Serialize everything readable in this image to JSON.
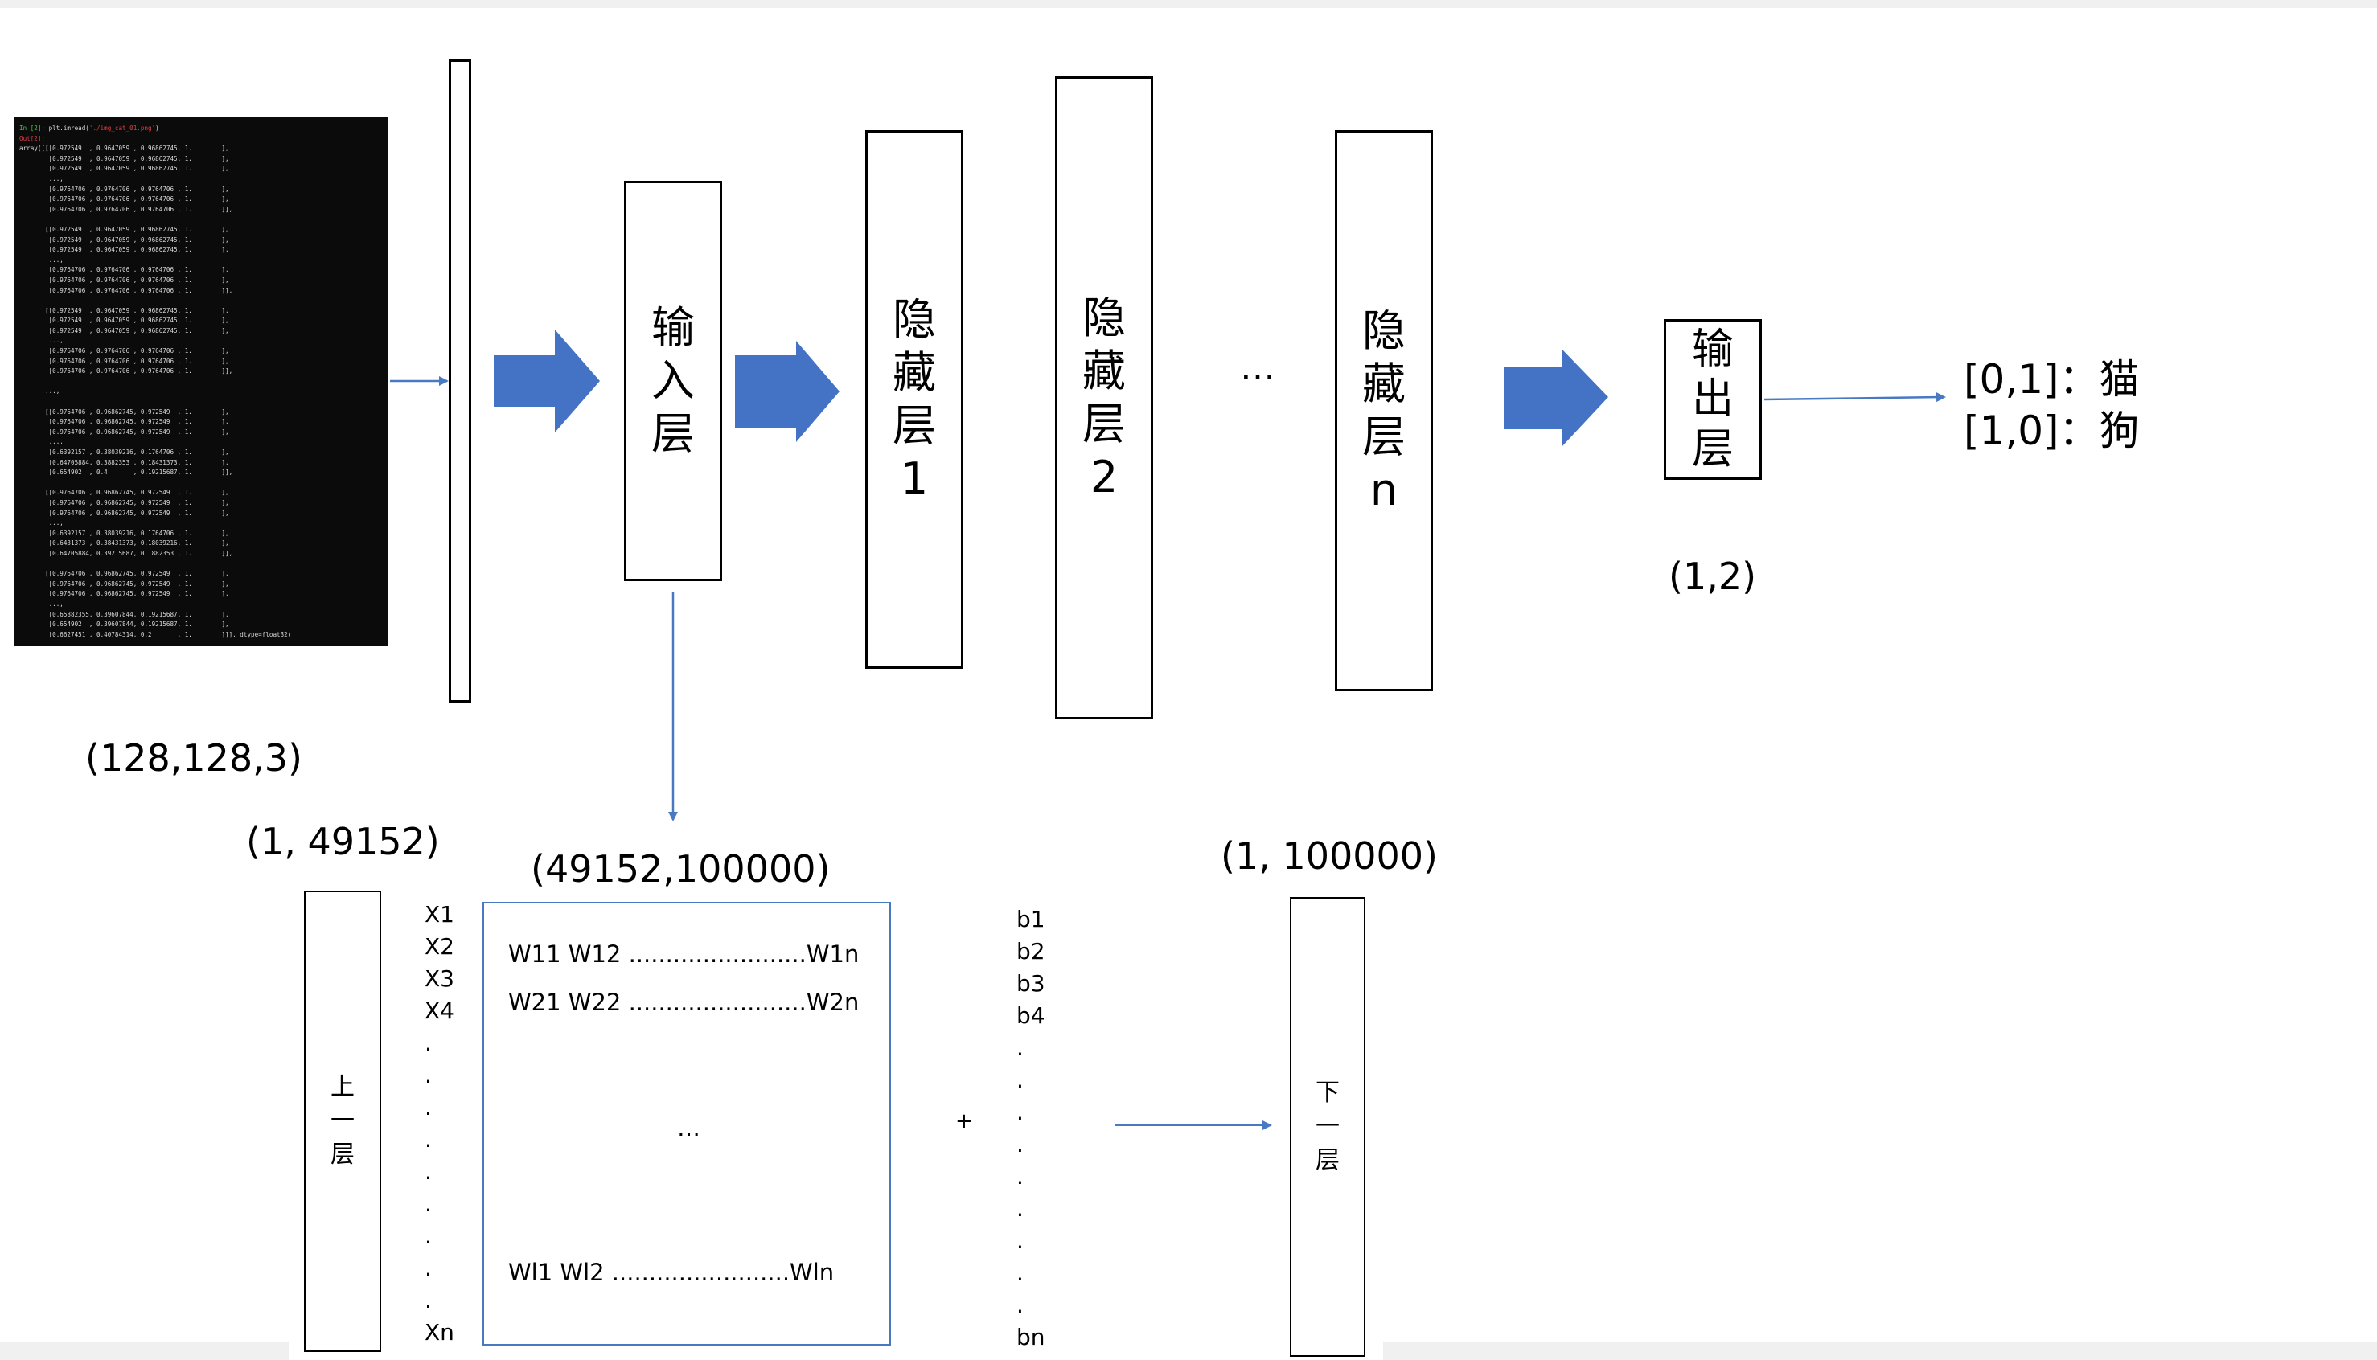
{
  "code_lines": [
    {
      "prompt": "In [2]: ",
      "code": "plt.imread(",
      "string": "'./img_cat_01.png'",
      "end": ")"
    },
    {
      "out": "Out[2]:"
    },
    {
      "text": "array([[[0.972549  , 0.9647059 , 0.96862745, 1.        ],"
    },
    {
      "text": "        [0.972549  , 0.9647059 , 0.96862745, 1.        ],"
    },
    {
      "text": "        [0.972549  , 0.9647059 , 0.96862745, 1.        ],"
    },
    {
      "text": "        ...,"
    },
    {
      "text": "        [0.9764706 , 0.9764706 , 0.9764706 , 1.        ],"
    },
    {
      "text": "        [0.9764706 , 0.9764706 , 0.9764706 , 1.        ],"
    },
    {
      "text": "        [0.9764706 , 0.9764706 , 0.9764706 , 1.        ]],"
    },
    {
      "text": ""
    },
    {
      "text": "       [[0.972549  , 0.9647059 , 0.96862745, 1.        ],"
    },
    {
      "text": "        [0.972549  , 0.9647059 , 0.96862745, 1.        ],"
    },
    {
      "text": "        [0.972549  , 0.9647059 , 0.96862745, 1.        ],"
    },
    {
      "text": "        ...,"
    },
    {
      "text": "        [0.9764706 , 0.9764706 , 0.9764706 , 1.        ],"
    },
    {
      "text": "        [0.9764706 , 0.9764706 , 0.9764706 , 1.        ],"
    },
    {
      "text": "        [0.9764706 , 0.9764706 , 0.9764706 , 1.        ]],"
    },
    {
      "text": ""
    },
    {
      "text": "       [[0.972549  , 0.9647059 , 0.96862745, 1.        ],"
    },
    {
      "text": "        [0.972549  , 0.9647059 , 0.96862745, 1.        ],"
    },
    {
      "text": "        [0.972549  , 0.9647059 , 0.96862745, 1.        ],"
    },
    {
      "text": "        ...,"
    },
    {
      "text": "        [0.9764706 , 0.9764706 , 0.9764706 , 1.        ],"
    },
    {
      "text": "        [0.9764706 , 0.9764706 , 0.9764706 , 1.        ],"
    },
    {
      "text": "        [0.9764706 , 0.9764706 , 0.9764706 , 1.        ]],"
    },
    {
      "text": ""
    },
    {
      "text": "       ...,"
    },
    {
      "text": ""
    },
    {
      "text": "       [[0.9764706 , 0.96862745, 0.972549  , 1.        ],"
    },
    {
      "text": "        [0.9764706 , 0.96862745, 0.972549  , 1.        ],"
    },
    {
      "text": "        [0.9764706 , 0.96862745, 0.972549  , 1.        ],"
    },
    {
      "text": "        ...,"
    },
    {
      "text": "        [0.6392157 , 0.38039216, 0.1764706 , 1.        ],"
    },
    {
      "text": "        [0.64705884, 0.3882353 , 0.18431373, 1.        ],"
    },
    {
      "text": "        [0.654902  , 0.4       , 0.19215687, 1.        ]],"
    },
    {
      "text": ""
    },
    {
      "text": "       [[0.9764706 , 0.96862745, 0.972549  , 1.        ],"
    },
    {
      "text": "        [0.9764706 , 0.96862745, 0.972549  , 1.        ],"
    },
    {
      "text": "        [0.9764706 , 0.96862745, 0.972549  , 1.        ],"
    },
    {
      "text": "        ...,"
    },
    {
      "text": "        [0.6392157 , 0.38039216, 0.1764706 , 1.        ],"
    },
    {
      "text": "        [0.6431373 , 0.38431373, 0.18039216, 1.        ],"
    },
    {
      "text": "        [0.64705884, 0.39215687, 0.1882353 , 1.        ]],"
    },
    {
      "text": ""
    },
    {
      "text": "       [[0.9764706 , 0.96862745, 0.972549  , 1.        ],"
    },
    {
      "text": "        [0.9764706 , 0.96862745, 0.972549  , 1.        ],"
    },
    {
      "text": "        [0.9764706 , 0.96862745, 0.972549  , 1.        ],"
    },
    {
      "text": "        ...,"
    },
    {
      "text": "        [0.65882355, 0.39607844, 0.19215687, 1.        ],"
    },
    {
      "text": "        [0.654902  , 0.39607844, 0.19215687, 1.        ],"
    },
    {
      "text": "        [0.6627451 , 0.40784314, 0.2       , 1.        ]]], dtype=float32)"
    }
  ],
  "shape_image": "(128,128,3)",
  "input_layer": [
    "输",
    "入",
    "层"
  ],
  "hidden_1": [
    "隐",
    "藏",
    "层",
    "1"
  ],
  "hidden_2": [
    "隐",
    "藏",
    "层",
    "2"
  ],
  "ellipsis_top": "…",
  "hidden_n": [
    "隐",
    "藏",
    "层",
    "n"
  ],
  "output_layer": [
    "输",
    "出",
    "层"
  ],
  "shape_output": "(1,2)",
  "class_map": [
    "[0,1]：猫",
    "[1,0]：狗"
  ],
  "shape_prev": "(1, 49152)",
  "shape_weights": "(49152,100000)",
  "shape_bias": "(1, 100000)",
  "prev_layer": [
    "上",
    "一",
    "层"
  ],
  "next_layer": [
    "下",
    "一",
    "层"
  ],
  "x_labels": [
    "X1",
    "X2",
    "X3",
    "X4",
    ".",
    ".",
    ".",
    ".",
    ".",
    ".",
    ".",
    ".",
    ".",
    "Xn"
  ],
  "weight_rows": [
    "W11 W12 ........................W1n",
    "W21 W22 ........................W2n",
    "…",
    "Wl1 Wl2 ........................Wln"
  ],
  "plus_sign": "+",
  "b_labels": [
    "b1",
    "b2",
    "b3",
    "b4",
    ".",
    ".",
    ".",
    ".",
    ".",
    ".",
    ".",
    ".",
    ".",
    "bn"
  ],
  "colors": {
    "arrow_fill": "#4472c4",
    "line": "#4a79c4",
    "box_border": "#000000"
  }
}
